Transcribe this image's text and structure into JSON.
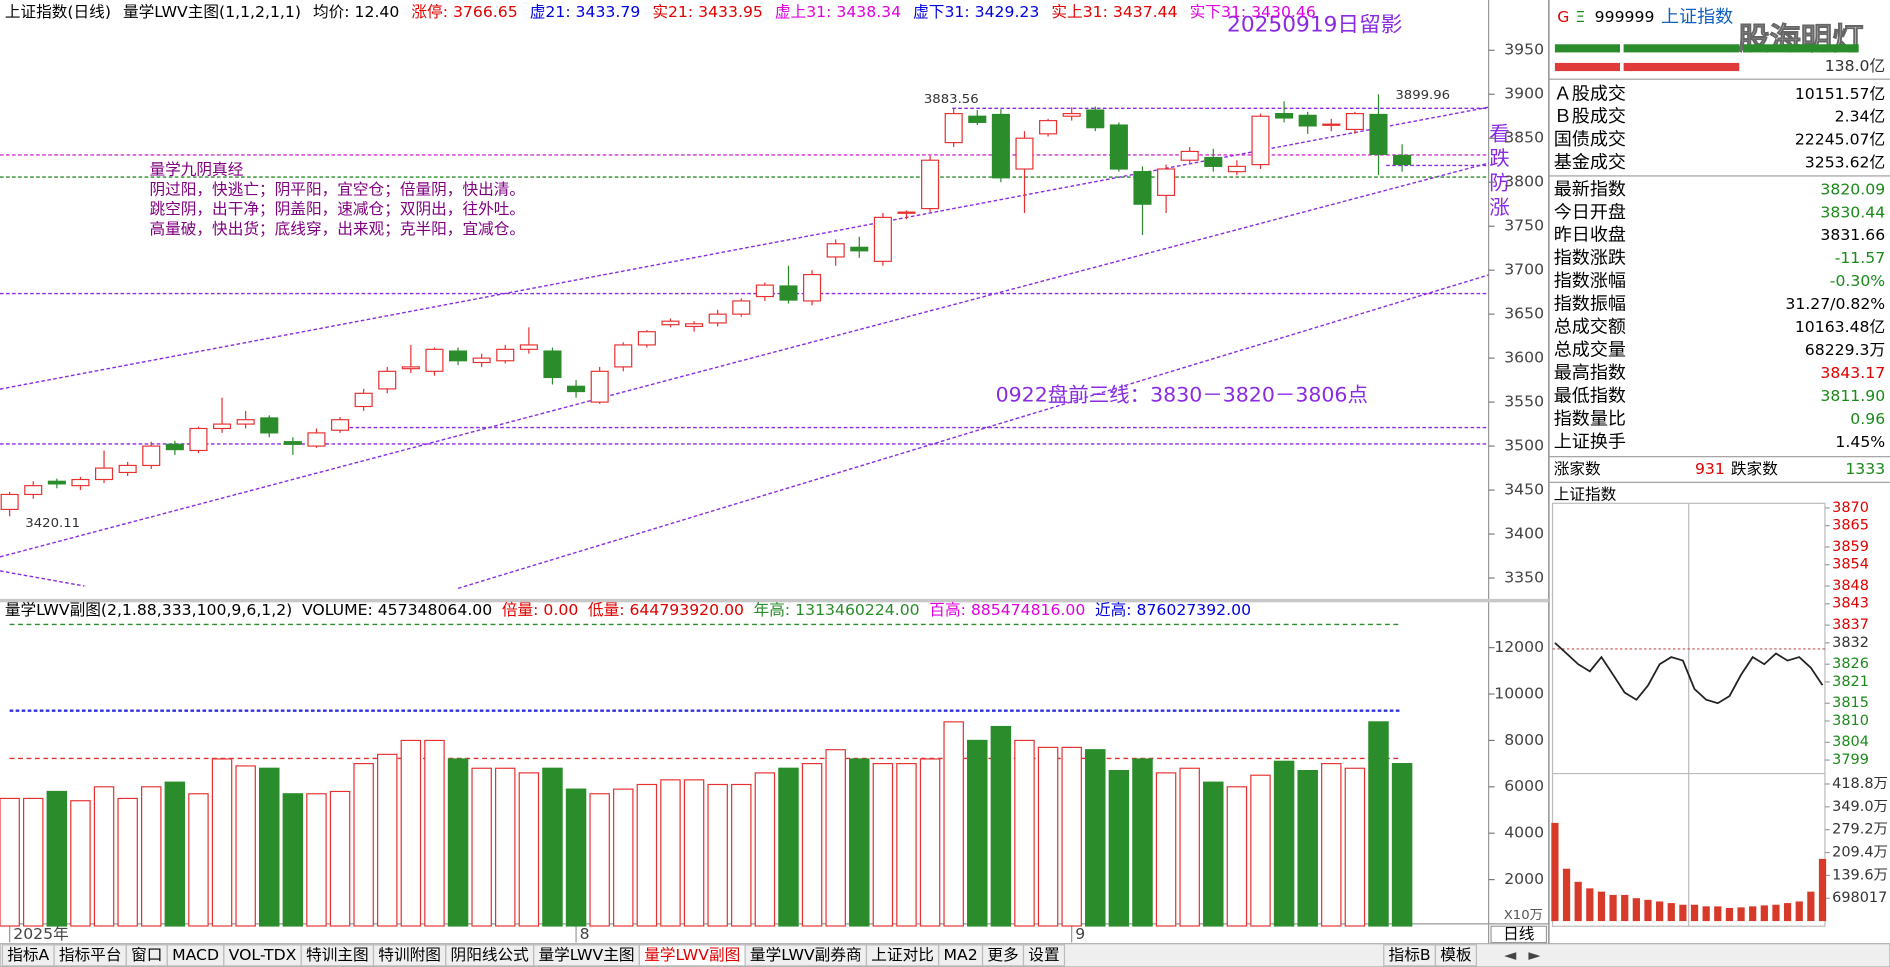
{
  "header": {
    "items": [
      {
        "text": "上证指数(日线)",
        "color": "#000"
      },
      {
        "text": "量学LWV主图(1,1,2,1,1)",
        "color": "#000"
      },
      {
        "text": "均价: 12.40",
        "color": "#000"
      },
      {
        "text": "涨停: 3766.65",
        "color": "#e00000"
      },
      {
        "text": "虚21: 3433.79",
        "color": "#0000e0"
      },
      {
        "text": "实21: 3433.95",
        "color": "#e00000"
      },
      {
        "text": "虚上31: 3438.34",
        "color": "#e000e0"
      },
      {
        "text": "虚下31: 3429.23",
        "color": "#0000e0"
      },
      {
        "text": "实上31: 3437.44",
        "color": "#e00000"
      },
      {
        "text": "实下31: 3430.46",
        "color": "#e000e0"
      }
    ]
  },
  "annotations": {
    "title": "20250919日留影",
    "verse_title": "量学九阴真经",
    "verse": [
      "阴过阳，快逃亡；阴平阳，宜空仓；倍量阴，快出清。",
      "跳空阴，出干净；阴盖阳，速减仓；双阴出，往外吐。",
      "高量破，快出货；底线穿，出来观；克半阳，宜减仓。"
    ],
    "plan": "0922盘前三线：3830－3820－3806点",
    "side": [
      "看",
      "跌",
      "防",
      "涨"
    ]
  },
  "chart_data": [
    {
      "type": "candlestick",
      "up_color": "#e83030",
      "down_color": "#2a8c2a",
      "open": [
        3428,
        3445,
        3460,
        3455,
        3462,
        3470,
        3478,
        3502,
        3495,
        3520,
        3525,
        3532,
        3505,
        3500,
        3518,
        3545,
        3565,
        3588,
        3585,
        3608,
        3595,
        3597,
        3610,
        3608,
        3568,
        3550,
        3590,
        3615,
        3638,
        3636,
        3640,
        3650,
        3670,
        3682,
        3665,
        3715,
        3726,
        3710,
        3765,
        3770,
        3845,
        3875,
        3877,
        3815,
        3855,
        3875,
        3882,
        3865,
        3812,
        3785,
        3825,
        3828,
        3812,
        3820,
        3878,
        3876,
        3865,
        3860,
        3877,
        3830.44
      ],
      "high": [
        3448,
        3460,
        3463,
        3465,
        3495,
        3482,
        3505,
        3506,
        3522,
        3555,
        3540,
        3535,
        3510,
        3520,
        3533,
        3565,
        3590,
        3615,
        3612,
        3612,
        3605,
        3615,
        3635,
        3612,
        3575,
        3590,
        3618,
        3632,
        3645,
        3642,
        3655,
        3668,
        3686,
        3705,
        3700,
        3735,
        3738,
        3765,
        3768,
        3830,
        3883.56,
        3882,
        3883,
        3858,
        3872,
        3885,
        3886,
        3868,
        3818,
        3820,
        3840,
        3838,
        3825,
        3878,
        3892,
        3880,
        3872,
        3880,
        3899.96,
        3843.17
      ],
      "low": [
        3420.11,
        3440,
        3452,
        3450,
        3458,
        3466,
        3474,
        3490,
        3492,
        3515,
        3520,
        3510,
        3490,
        3498,
        3515,
        3540,
        3560,
        3583,
        3580,
        3592,
        3590,
        3594,
        3605,
        3570,
        3555,
        3548,
        3585,
        3612,
        3635,
        3630,
        3636,
        3647,
        3665,
        3662,
        3660,
        3705,
        3714,
        3705,
        3758,
        3766,
        3840,
        3865,
        3800,
        3765,
        3852,
        3870,
        3858,
        3812,
        3740,
        3765,
        3822,
        3812,
        3808,
        3815,
        3868,
        3855,
        3858,
        3855,
        3808,
        3811.9
      ],
      "close": [
        3445,
        3455,
        3457,
        3462,
        3475,
        3478,
        3500,
        3496,
        3520,
        3525,
        3530,
        3515,
        3502,
        3515,
        3530,
        3560,
        3585,
        3590,
        3610,
        3597,
        3600,
        3610,
        3615,
        3578,
        3562,
        3585,
        3615,
        3630,
        3642,
        3639,
        3650,
        3665,
        3683,
        3666,
        3695,
        3730,
        3722,
        3760,
        3766,
        3825,
        3878,
        3868,
        3805,
        3850,
        3870,
        3878,
        3862,
        3815,
        3775,
        3815,
        3835,
        3818,
        3818,
        3875,
        3873,
        3864,
        3866,
        3878,
        3831.66,
        3820.09
      ],
      "ylim": [
        3325,
        3978
      ],
      "yticks": [
        3350,
        3400,
        3450,
        3500,
        3550,
        3600,
        3650,
        3700,
        3750,
        3800,
        3850,
        3900,
        3950
      ],
      "xticks": [
        {
          "value": 0,
          "label": "2025年"
        },
        {
          "value": 24,
          "label": "8"
        },
        {
          "value": 45,
          "label": "9"
        }
      ],
      "period": "日线"
    },
    {
      "type": "bar",
      "title": "量学LWV副图(2,1.88,333,100,9,6,1,2)",
      "stats": [
        {
          "text": "VOLUME: 457348064.00",
          "color": "#000"
        },
        {
          "text": "倍量: 0.00",
          "color": "#e00000"
        },
        {
          "text": "低量: 644793920.00",
          "color": "#e00000"
        },
        {
          "text": "年高: 1313460224.00",
          "color": "#2a8c2a"
        },
        {
          "text": "百高: 885474816.00",
          "color": "#e000e0"
        },
        {
          "text": "近高: 876027392.00",
          "color": "#0000e0"
        }
      ],
      "values": [
        5500,
        5500,
        5800,
        5400,
        6000,
        5500,
        6000,
        6200,
        5700,
        7200,
        6900,
        6800,
        5700,
        5700,
        5800,
        7000,
        7400,
        8000,
        8000,
        7200,
        6800,
        6800,
        6600,
        6800,
        5900,
        5700,
        5900,
        6100,
        6300,
        6300,
        6100,
        6100,
        6600,
        6800,
        7000,
        7600,
        7200,
        7000,
        7000,
        7200,
        8800,
        8000,
        8600,
        8000,
        7700,
        7700,
        7600,
        6700,
        7200,
        6600,
        6800,
        6200,
        6000,
        6500,
        7100,
        6700,
        7000,
        6800,
        8800,
        7000
      ],
      "ylim": [
        0,
        13300
      ],
      "yticks": [
        2000,
        4000,
        6000,
        8000,
        10000,
        12000
      ],
      "unit": "X10万"
    },
    {
      "type": "line",
      "title": "上证指数",
      "color": "#222",
      "values": [
        3832,
        3829,
        3826,
        3824,
        3828,
        3823,
        3818,
        3816,
        3820,
        3826,
        3828,
        3827,
        3819,
        3816,
        3815,
        3817,
        3823,
        3828,
        3826,
        3829,
        3827,
        3828,
        3825,
        3820.09
      ],
      "ylim": [
        3796.5,
        3871.3
      ],
      "yticks": [
        3870,
        3865,
        3859,
        3854,
        3848,
        3843,
        3837,
        3832,
        3826,
        3821,
        3815,
        3810,
        3804,
        3799
      ]
    },
    {
      "type": "bar",
      "color": "#d83a2a",
      "values": [
        3000000,
        1600000,
        1200000,
        1000000,
        900000,
        800000,
        800000,
        700000,
        650000,
        600000,
        550000,
        500000,
        500000,
        450000,
        450000,
        400000,
        420000,
        450000,
        480000,
        500000,
        550000,
        600000,
        900000,
        1900000
      ],
      "ylim": [
        0,
        4470000
      ],
      "yticks": [
        {
          "value": 4188102,
          "label": "418.8万"
        },
        {
          "value": 3490085,
          "label": "349.0万"
        },
        {
          "value": 2792068,
          "label": "279.2万"
        },
        {
          "value": 2094051,
          "label": "209.4万"
        },
        {
          "value": 1396034,
          "label": "139.6万"
        },
        698017
      ]
    }
  ],
  "quote": {
    "code": "999999",
    "name": "上证指数",
    "watermark": "股海明灯",
    "amount": "138.0亿",
    "rows": [
      {
        "label": "Ａ股成交",
        "value": "10151.57亿",
        "color": "#000"
      },
      {
        "label": "Ｂ股成交",
        "value": "2.34亿",
        "color": "#000"
      },
      {
        "label": "国债成交",
        "value": "22245.07亿",
        "color": "#000"
      },
      {
        "label": "基金成交",
        "value": "3253.62亿",
        "color": "#000"
      },
      {
        "label": "最新指数",
        "value": "3820.09",
        "color": "#1a8a1a"
      },
      {
        "label": "今日开盘",
        "value": "3830.44",
        "color": "#1a8a1a"
      },
      {
        "label": "昨日收盘",
        "value": "3831.66",
        "color": "#000"
      },
      {
        "label": "指数涨跌",
        "value": "-11.57",
        "color": "#1a8a1a"
      },
      {
        "label": "指数涨幅",
        "value": "-0.30%",
        "color": "#1a8a1a"
      },
      {
        "label": "指数振幅",
        "value": "31.27/0.82%",
        "color": "#000"
      },
      {
        "label": "总成交额",
        "value": "10163.48亿",
        "color": "#000"
      },
      {
        "label": "总成交量",
        "value": "68229.3万",
        "color": "#000"
      },
      {
        "label": "最高指数",
        "value": "3843.17",
        "color": "#e00000"
      },
      {
        "label": "最低指数",
        "value": "3811.90",
        "color": "#1a8a1a"
      },
      {
        "label": "指数量比",
        "value": "0.96",
        "color": "#1a8a1a"
      },
      {
        "label": "上证换手",
        "value": "1.45%",
        "color": "#000"
      }
    ],
    "breadth": {
      "up_label": "涨家数",
      "up": "931",
      "down_label": "跌家数",
      "down": "1333"
    }
  },
  "tabs": {
    "items": [
      "指标A",
      "指标平台",
      "窗口",
      "MACD",
      "VOL-TDX",
      "特训主图",
      "特训附图",
      "阴阳线公式",
      "量学LWV主图",
      "量学LWV副图",
      "量学LWV副券商",
      "上证对比",
      "MA2",
      "更多",
      "设置"
    ],
    "active": 9,
    "right": [
      "指标B",
      "模板"
    ]
  }
}
